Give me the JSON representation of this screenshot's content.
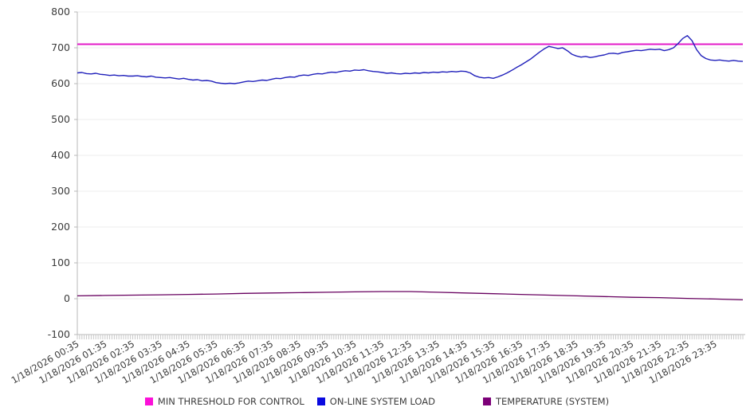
{
  "legend": {
    "position": "bottom",
    "items": [
      {
        "label": "MIN THRESHOLD FOR CONTROL",
        "color": "#fb10d8"
      },
      {
        "label": "ON-LINE SYSTEM LOAD",
        "color": "#0a0ae0"
      },
      {
        "label": "TEMPERATURE (SYSTEM)",
        "color": "#7c0078"
      }
    ]
  },
  "chart_data": {
    "type": "line",
    "title": "",
    "xlabel": "",
    "ylabel": "",
    "ylim": [
      -100,
      800
    ],
    "y_ticks": [
      -100,
      0,
      100,
      200,
      300,
      400,
      500,
      600,
      700,
      800
    ],
    "grid": true,
    "minor_x_tick_interval_minutes": 5,
    "x_start": "1/18/2026 00:35",
    "x_end": "1/19/2026 00:35",
    "x_labels": [
      "1/18/2026 00:35",
      "1/18/2026 01:35",
      "1/18/2026 02:35",
      "1/18/2026 03:35",
      "1/18/2026 04:35",
      "1/18/2026 05:35",
      "1/18/2026 06:35",
      "1/18/2026 07:35",
      "1/18/2026 08:35",
      "1/18/2026 09:35",
      "1/18/2026 10:35",
      "1/18/2026 11:35",
      "1/18/2026 12:35",
      "1/18/2026 13:35",
      "1/18/2026 14:35",
      "1/18/2026 15:35",
      "1/18/2026 16:35",
      "1/18/2026 17:35",
      "1/18/2026 18:35",
      "1/18/2026 19:35",
      "1/18/2026 20:35",
      "1/18/2026 21:35",
      "1/18/2026 22:35",
      "1/18/2026 23:35"
    ],
    "series": [
      {
        "name": "MIN THRESHOLD FOR CONTROL",
        "type": "constant",
        "value": 710,
        "color": "#e319c8",
        "stroke_width": 2
      },
      {
        "name": "ON-LINE SYSTEM LOAD",
        "type": "line",
        "interval_minutes": 10,
        "color": "#2121bb",
        "stroke_width": 1.4,
        "values": [
          630,
          631,
          628,
          627,
          629,
          626,
          625,
          623,
          624,
          622,
          623,
          621,
          621,
          622,
          620,
          619,
          621,
          618,
          617,
          616,
          617,
          615,
          613,
          615,
          612,
          610,
          611,
          608,
          609,
          607,
          603,
          601,
          600,
          601,
          600,
          602,
          605,
          607,
          606,
          608,
          610,
          609,
          612,
          615,
          614,
          617,
          619,
          618,
          622,
          624,
          623,
          626,
          628,
          627,
          630,
          632,
          631,
          634,
          636,
          635,
          638,
          637,
          639,
          636,
          634,
          633,
          631,
          629,
          630,
          628,
          627,
          629,
          628,
          630,
          629,
          631,
          630,
          632,
          631,
          633,
          632,
          634,
          633,
          635,
          634,
          630,
          622,
          618,
          616,
          617,
          615,
          619,
          624,
          630,
          637,
          645,
          652,
          660,
          668,
          678,
          688,
          697,
          704,
          701,
          698,
          700,
          692,
          682,
          677,
          674,
          676,
          673,
          675,
          678,
          680,
          684,
          685,
          683,
          687,
          689,
          691,
          693,
          692,
          694,
          696,
          695,
          696,
          692,
          695,
          700,
          712,
          726,
          734,
          720,
          695,
          678,
          670,
          666,
          665,
          666,
          664,
          663,
          665,
          663,
          662
        ]
      },
      {
        "name": "TEMPERATURE (SYSTEM)",
        "type": "line",
        "interval_minutes": 60,
        "color": "#67005f",
        "stroke_width": 1.3,
        "values": [
          8,
          9,
          10,
          11,
          12,
          13,
          15,
          16,
          17,
          18,
          19,
          20,
          20,
          18,
          16,
          14,
          12,
          10,
          8,
          6,
          4,
          3,
          1,
          -1,
          -3
        ]
      }
    ]
  },
  "colors": {
    "grid_line": "#ececec",
    "axis_line": "#b8b8b8",
    "minor_tick": "#c8c8c8",
    "tick_label": "#3c3c3c"
  }
}
